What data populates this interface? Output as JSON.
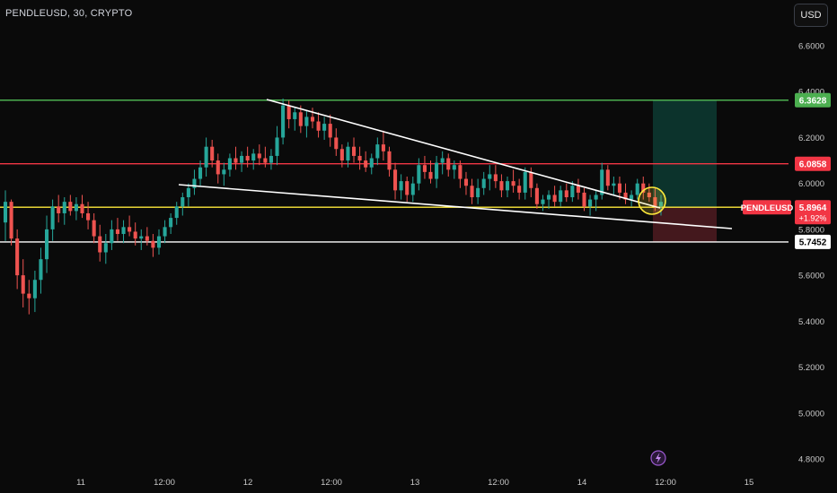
{
  "header": {
    "symbol": "PENDLEUSD, 30, CRYPTO",
    "currency": "USD"
  },
  "colors": {
    "background": "#0a0a0a",
    "up": "#26a69a",
    "down": "#ef5350",
    "resistance": "#4caf50",
    "red_level": "#f23645",
    "yellow_level": "#ffeb3b",
    "white": "#ffffff",
    "target_zone": "#0d3b32",
    "stop_zone": "#4a1a1f"
  },
  "chart_data": {
    "type": "candlestick",
    "symbol": "PENDLEUSD",
    "timeframe": "30",
    "ylim": [
      4.75,
      6.72
    ],
    "y_ticks": [
      "6.6000",
      "6.4000",
      "6.2000",
      "6.0000",
      "5.8000",
      "5.6000",
      "5.4000",
      "5.2000",
      "5.0000",
      "4.8000"
    ],
    "x_ticks": [
      "11",
      "12:00",
      "12",
      "12:00",
      "13",
      "12:00",
      "14",
      "12:00",
      "15"
    ],
    "last_price": {
      "symbol": "PENDLEUSD",
      "value": "5.8964",
      "change": "+1.92%"
    },
    "horizontal_levels": [
      {
        "value": 6.3628,
        "label": "6.3628",
        "color": "#4caf50"
      },
      {
        "value": 6.0858,
        "label": "6.0858",
        "color": "#f23645"
      },
      {
        "value": 5.8964,
        "label": "",
        "color": "#ffeb3b"
      },
      {
        "value": 5.7452,
        "label": "5.7452",
        "color": "#ffffff"
      }
    ],
    "trendlines": [
      {
        "from": [
          1.94,
          6.37
        ],
        "to": [
          4.69,
          5.92
        ]
      },
      {
        "from": [
          0.97,
          6.0
        ],
        "to": [
          4.73,
          5.8
        ]
      }
    ],
    "position": {
      "entry": 5.8964,
      "target": 6.3628,
      "stop": 5.7452,
      "x_start": 3.92,
      "x_end": 4.29
    },
    "highlight": {
      "x": 3.9,
      "y": 5.93
    },
    "candles": [
      [
        0,
        5.83,
        5.97,
        5.75,
        5.92
      ],
      [
        1,
        5.92,
        5.93,
        5.73,
        5.76
      ],
      [
        2,
        5.76,
        5.8,
        5.54,
        5.6
      ],
      [
        3,
        5.6,
        5.67,
        5.46,
        5.52
      ],
      [
        4,
        5.52,
        5.58,
        5.43,
        5.5
      ],
      [
        5,
        5.5,
        5.62,
        5.44,
        5.58
      ],
      [
        6,
        5.58,
        5.72,
        5.52,
        5.67
      ],
      [
        7,
        5.67,
        5.86,
        5.61,
        5.8
      ],
      [
        8,
        5.8,
        5.93,
        5.75,
        5.9
      ],
      [
        9,
        5.9,
        5.95,
        5.83,
        5.87
      ],
      [
        10,
        5.87,
        5.94,
        5.82,
        5.92
      ],
      [
        11,
        5.92,
        5.95,
        5.86,
        5.88
      ],
      [
        12,
        5.88,
        5.94,
        5.84,
        5.91
      ],
      [
        13,
        5.91,
        5.95,
        5.85,
        5.87
      ],
      [
        14,
        5.87,
        5.92,
        5.8,
        5.84
      ],
      [
        15,
        5.84,
        5.87,
        5.74,
        5.77
      ],
      [
        16,
        5.77,
        5.82,
        5.66,
        5.7
      ],
      [
        17,
        5.7,
        5.78,
        5.65,
        5.74
      ],
      [
        18,
        5.74,
        5.84,
        5.71,
        5.8
      ],
      [
        19,
        5.8,
        5.85,
        5.75,
        5.78
      ],
      [
        20,
        5.78,
        5.84,
        5.74,
        5.81
      ],
      [
        21,
        5.81,
        5.86,
        5.77,
        5.79
      ],
      [
        22,
        5.79,
        5.83,
        5.73,
        5.76
      ],
      [
        23,
        5.76,
        5.8,
        5.71,
        5.77
      ],
      [
        24,
        5.77,
        5.81,
        5.73,
        5.75
      ],
      [
        25,
        5.75,
        5.78,
        5.68,
        5.72
      ],
      [
        26,
        5.72,
        5.8,
        5.69,
        5.77
      ],
      [
        27,
        5.77,
        5.84,
        5.74,
        5.81
      ],
      [
        28,
        5.81,
        5.87,
        5.78,
        5.85
      ],
      [
        29,
        5.85,
        5.92,
        5.82,
        5.9
      ],
      [
        30,
        5.9,
        5.96,
        5.86,
        5.94
      ],
      [
        31,
        5.94,
        6.0,
        5.9,
        5.98
      ],
      [
        32,
        5.98,
        6.06,
        5.95,
        6.02
      ],
      [
        33,
        6.02,
        6.1,
        5.99,
        6.07
      ],
      [
        34,
        6.07,
        6.2,
        6.03,
        6.16
      ],
      [
        35,
        6.16,
        6.19,
        6.07,
        6.1
      ],
      [
        36,
        6.1,
        6.13,
        6.0,
        6.04
      ],
      [
        37,
        6.04,
        6.09,
        5.99,
        6.06
      ],
      [
        38,
        6.06,
        6.13,
        6.03,
        6.11
      ],
      [
        39,
        6.11,
        6.16,
        6.06,
        6.09
      ],
      [
        40,
        6.09,
        6.14,
        6.05,
        6.12
      ],
      [
        41,
        6.12,
        6.16,
        6.07,
        6.1
      ],
      [
        42,
        6.1,
        6.15,
        6.06,
        6.13
      ],
      [
        43,
        6.13,
        6.17,
        6.08,
        6.11
      ],
      [
        44,
        6.11,
        6.16,
        6.07,
        6.09
      ],
      [
        45,
        6.09,
        6.15,
        6.06,
        6.12
      ],
      [
        46,
        6.12,
        6.25,
        6.08,
        6.2
      ],
      [
        47,
        6.2,
        6.37,
        6.17,
        6.34
      ],
      [
        48,
        6.34,
        6.36,
        6.24,
        6.28
      ],
      [
        49,
        6.28,
        6.33,
        6.23,
        6.31
      ],
      [
        50,
        6.31,
        6.34,
        6.22,
        6.25
      ],
      [
        51,
        6.25,
        6.32,
        6.2,
        6.29
      ],
      [
        52,
        6.29,
        6.33,
        6.24,
        6.27
      ],
      [
        53,
        6.27,
        6.31,
        6.2,
        6.23
      ],
      [
        54,
        6.23,
        6.29,
        6.19,
        6.26
      ],
      [
        55,
        6.26,
        6.3,
        6.16,
        6.2
      ],
      [
        56,
        6.2,
        6.24,
        6.12,
        6.15
      ],
      [
        57,
        6.15,
        6.17,
        6.07,
        6.1
      ],
      [
        58,
        6.1,
        6.18,
        6.07,
        6.16
      ],
      [
        59,
        6.16,
        6.2,
        6.09,
        6.12
      ],
      [
        60,
        6.12,
        6.16,
        6.06,
        6.1
      ],
      [
        61,
        6.1,
        6.14,
        6.05,
        6.07
      ],
      [
        62,
        6.07,
        6.13,
        6.04,
        6.11
      ],
      [
        63,
        6.11,
        6.2,
        6.08,
        6.17
      ],
      [
        64,
        6.17,
        6.23,
        6.1,
        6.14
      ],
      [
        65,
        6.14,
        6.16,
        6.03,
        6.06
      ],
      [
        66,
        6.06,
        6.09,
        5.93,
        5.97
      ],
      [
        67,
        5.97,
        6.04,
        5.93,
        6.01
      ],
      [
        68,
        6.01,
        6.03,
        5.92,
        5.95
      ],
      [
        69,
        5.95,
        6.03,
        5.92,
        6.0
      ],
      [
        70,
        6.0,
        6.11,
        5.97,
        6.08
      ],
      [
        71,
        6.08,
        6.12,
        6.02,
        6.05
      ],
      [
        72,
        6.05,
        6.1,
        6.0,
        6.02
      ],
      [
        73,
        6.02,
        6.12,
        5.98,
        6.09
      ],
      [
        74,
        6.09,
        6.14,
        6.04,
        6.11
      ],
      [
        75,
        6.11,
        6.13,
        6.03,
        6.06
      ],
      [
        76,
        6.06,
        6.1,
        6.02,
        6.08
      ],
      [
        77,
        6.08,
        6.1,
        5.98,
        6.02
      ],
      [
        78,
        6.02,
        6.05,
        5.95,
        5.99
      ],
      [
        79,
        5.99,
        6.02,
        5.91,
        5.94
      ],
      [
        80,
        5.94,
        6.02,
        5.91,
        5.98
      ],
      [
        81,
        5.98,
        6.05,
        5.95,
        6.02
      ],
      [
        82,
        6.02,
        6.08,
        5.97,
        6.04
      ],
      [
        83,
        6.04,
        6.08,
        5.98,
        6.01
      ],
      [
        84,
        6.01,
        6.04,
        5.94,
        5.97
      ],
      [
        85,
        5.97,
        6.03,
        5.94,
        6.01
      ],
      [
        86,
        6.01,
        6.06,
        5.96,
        5.99
      ],
      [
        87,
        5.99,
        6.02,
        5.93,
        5.96
      ],
      [
        88,
        5.96,
        6.07,
        5.93,
        6.05
      ],
      [
        89,
        6.05,
        6.07,
        5.94,
        5.98
      ],
      [
        90,
        5.98,
        6.0,
        5.89,
        5.91
      ],
      [
        91,
        5.91,
        5.95,
        5.88,
        5.93
      ],
      [
        92,
        5.93,
        5.97,
        5.89,
        5.95
      ],
      [
        93,
        5.95,
        5.99,
        5.9,
        5.92
      ],
      [
        94,
        5.92,
        5.99,
        5.9,
        5.97
      ],
      [
        95,
        5.97,
        6.0,
        5.92,
        5.94
      ],
      [
        96,
        5.94,
        6.01,
        5.92,
        5.99
      ],
      [
        97,
        5.99,
        6.02,
        5.93,
        5.96
      ],
      [
        98,
        5.96,
        5.98,
        5.88,
        5.9
      ],
      [
        99,
        5.9,
        5.95,
        5.86,
        5.93
      ],
      [
        100,
        5.93,
        5.97,
        5.88,
        5.95
      ],
      [
        101,
        5.95,
        6.09,
        5.93,
        6.06
      ],
      [
        102,
        6.06,
        6.08,
        5.97,
        5.99
      ],
      [
        103,
        5.99,
        6.03,
        5.95,
        6.0
      ],
      [
        104,
        6.0,
        6.03,
        5.93,
        5.96
      ],
      [
        105,
        5.96,
        6.0,
        5.91,
        5.93
      ],
      [
        106,
        5.93,
        5.97,
        5.9,
        5.95
      ],
      [
        107,
        5.95,
        6.02,
        5.93,
        6.0
      ],
      [
        108,
        6.0,
        6.03,
        5.93,
        5.96
      ],
      [
        109,
        5.96,
        6.0,
        5.92,
        5.94
      ],
      [
        110,
        5.94,
        5.98,
        5.88,
        5.9
      ],
      [
        111,
        5.9,
        5.95,
        5.86,
        5.92
      ]
    ]
  }
}
